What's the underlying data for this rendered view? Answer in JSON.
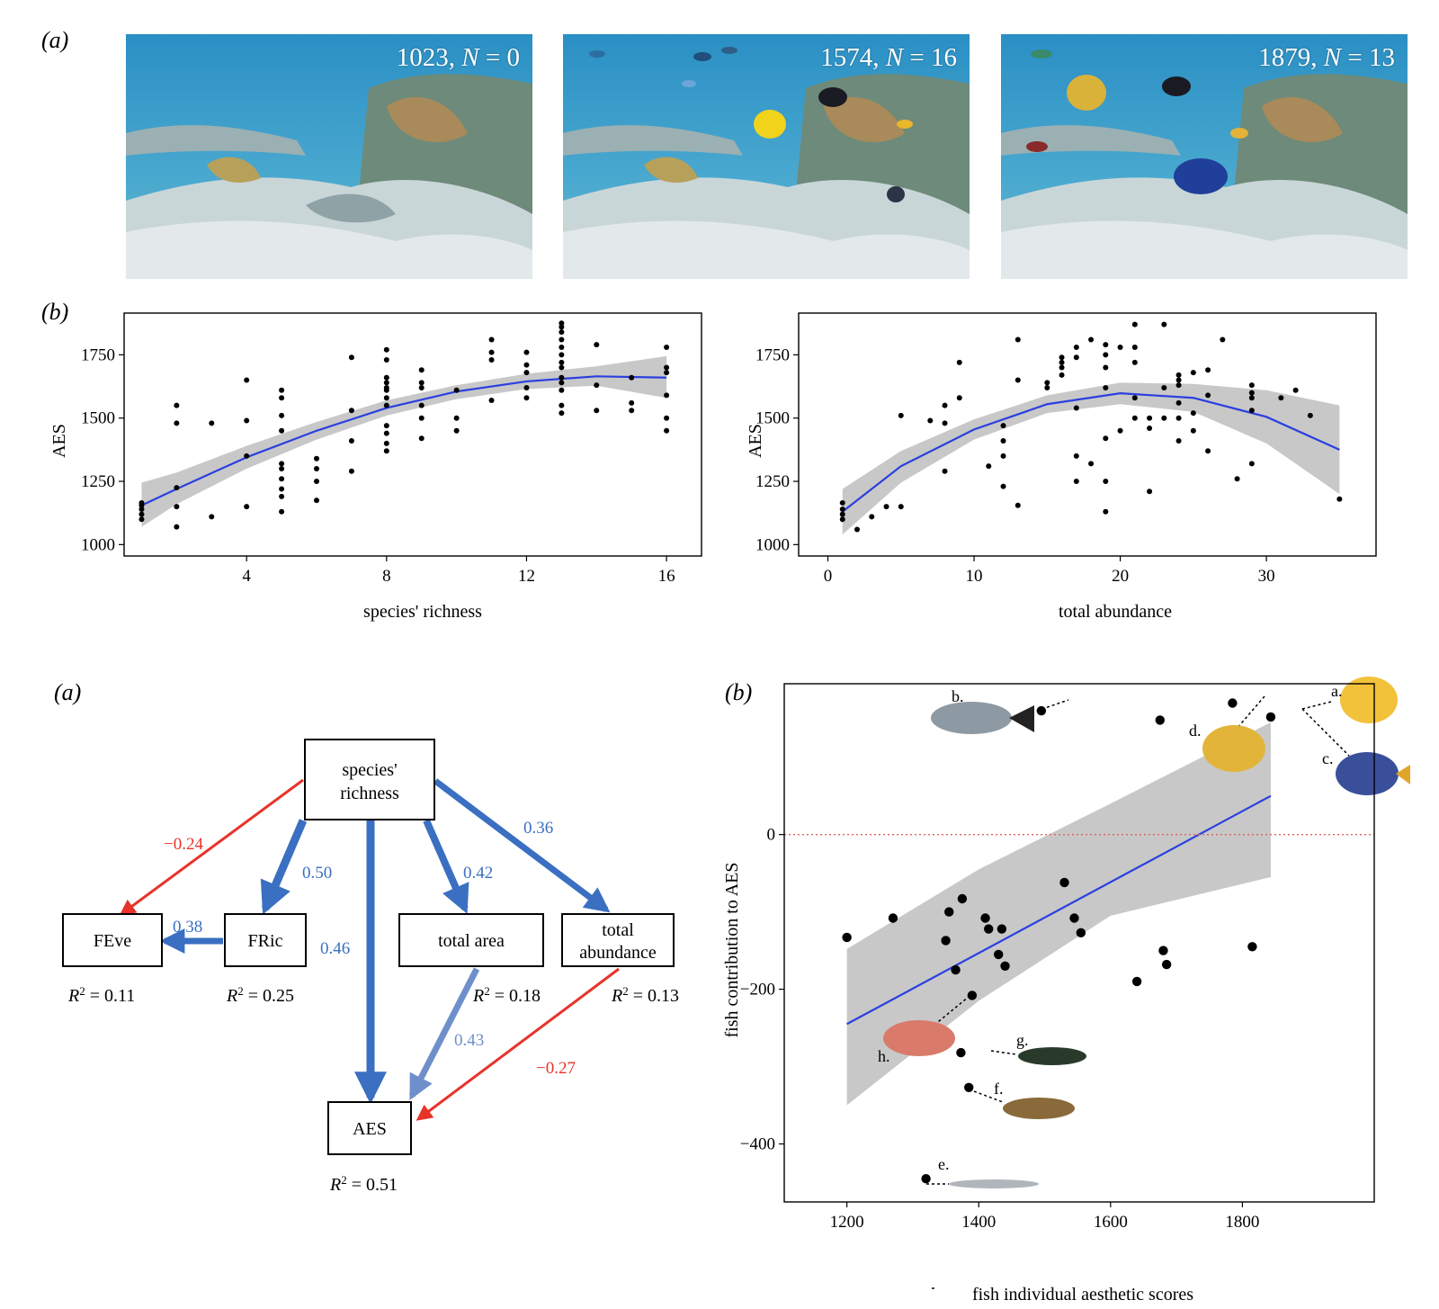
{
  "figure1": {
    "panel_a_label": "(a)",
    "panel_b_label": "(b)",
    "photos": [
      {
        "score": "1023",
        "n_label": "N",
        "n_value": "0"
      },
      {
        "score": "1574",
        "n_label": "N",
        "n_value": "16"
      },
      {
        "score": "1879",
        "n_label": "N",
        "n_value": "13"
      }
    ]
  },
  "figure2": {
    "panel_a_label": "(a)",
    "panel_b_label": "(b)",
    "sem": {
      "nodes": {
        "richness": [
          "species'",
          "richness"
        ],
        "feve": "FEve",
        "fric": "FRic",
        "area": "total area",
        "abundance": [
          "total",
          "abundance"
        ],
        "aes": "AES"
      },
      "r2": {
        "feve": "0.11",
        "fric": "0.25",
        "area": "0.18",
        "abundance": "0.13",
        "aes": "0.51"
      },
      "r2_label": "R",
      "paths": [
        {
          "from": "richness",
          "to": "feve",
          "coef": "−0.24",
          "color": "#e8332a"
        },
        {
          "from": "richness",
          "to": "fric",
          "coef": "0.50",
          "color": "#3a6fc1"
        },
        {
          "from": "richness",
          "to": "aes",
          "coef": "0.46",
          "color": "#3a6fc1"
        },
        {
          "from": "richness",
          "to": "area",
          "coef": "0.42",
          "color": "#3a6fc1"
        },
        {
          "from": "richness",
          "to": "abundance",
          "coef": "0.36",
          "color": "#3a6fc1"
        },
        {
          "from": "fric",
          "to": "feve",
          "coef": "0.38",
          "color": "#3a6fc1"
        },
        {
          "from": "area",
          "to": "aes",
          "coef": "0.43",
          "color": "#6f8fcb"
        },
        {
          "from": "abundance",
          "to": "aes",
          "coef": "−0.27",
          "color": "#e8332a"
        }
      ]
    },
    "fish_labels": [
      "a.",
      "b.",
      "c.",
      "d.",
      "e.",
      "f.",
      "g.",
      "h."
    ]
  },
  "colors": {
    "fit_line": "#2b3fe0",
    "ribbon": "#c8c8c8",
    "positive": "#3a6fc1",
    "negative": "#e8332a",
    "zero_line": "#e06060"
  },
  "chart_data": [
    {
      "type": "scatter",
      "xlabel": "species' richness",
      "ylabel": "AES",
      "xlim": [
        0.5,
        17
      ],
      "ylim": [
        955,
        1915
      ],
      "xticks": [
        4,
        8,
        12,
        16
      ],
      "yticks": [
        1000,
        1250,
        1500,
        1750
      ],
      "grid": false,
      "fit": "quadratic with grey confidence ribbon",
      "points": [
        [
          1,
          1100
        ],
        [
          1,
          1120
        ],
        [
          1,
          1140
        ],
        [
          1,
          1155
        ],
        [
          1,
          1165
        ],
        [
          2,
          1070
        ],
        [
          2,
          1150
        ],
        [
          2,
          1225
        ],
        [
          2,
          1480
        ],
        [
          2,
          1550
        ],
        [
          3,
          1110
        ],
        [
          3,
          1480
        ],
        [
          4,
          1150
        ],
        [
          4,
          1350
        ],
        [
          4,
          1490
        ],
        [
          4,
          1650
        ],
        [
          5,
          1130
        ],
        [
          5,
          1190
        ],
        [
          5,
          1220
        ],
        [
          5,
          1260
        ],
        [
          5,
          1300
        ],
        [
          5,
          1320
        ],
        [
          5,
          1450
        ],
        [
          5,
          1510
        ],
        [
          5,
          1580
        ],
        [
          5,
          1610
        ],
        [
          6,
          1175
        ],
        [
          6,
          1250
        ],
        [
          6,
          1300
        ],
        [
          6,
          1340
        ],
        [
          7,
          1290
        ],
        [
          7,
          1410
        ],
        [
          7,
          1530
        ],
        [
          7,
          1740
        ],
        [
          8,
          1370
        ],
        [
          8,
          1400
        ],
        [
          8,
          1440
        ],
        [
          8,
          1470
        ],
        [
          8,
          1550
        ],
        [
          8,
          1580
        ],
        [
          8,
          1610
        ],
        [
          8,
          1620
        ],
        [
          8,
          1640
        ],
        [
          8,
          1660
        ],
        [
          8,
          1730
        ],
        [
          8,
          1770
        ],
        [
          9,
          1420
        ],
        [
          9,
          1500
        ],
        [
          9,
          1550
        ],
        [
          9,
          1620
        ],
        [
          9,
          1640
        ],
        [
          9,
          1690
        ],
        [
          10,
          1450
        ],
        [
          10,
          1500
        ],
        [
          10,
          1610
        ],
        [
          11,
          1570
        ],
        [
          11,
          1730
        ],
        [
          11,
          1760
        ],
        [
          11,
          1810
        ],
        [
          12,
          1580
        ],
        [
          12,
          1620
        ],
        [
          12,
          1680
        ],
        [
          12,
          1710
        ],
        [
          12,
          1760
        ],
        [
          13,
          1520
        ],
        [
          13,
          1550
        ],
        [
          13,
          1610
        ],
        [
          13,
          1640
        ],
        [
          13,
          1660
        ],
        [
          13,
          1700
        ],
        [
          13,
          1720
        ],
        [
          13,
          1750
        ],
        [
          13,
          1780
        ],
        [
          13,
          1810
        ],
        [
          13,
          1840
        ],
        [
          13,
          1860
        ],
        [
          13,
          1875
        ],
        [
          14,
          1530
        ],
        [
          14,
          1630
        ],
        [
          14,
          1790
        ],
        [
          15,
          1530
        ],
        [
          15,
          1560
        ],
        [
          15,
          1660
        ],
        [
          16,
          1450
        ],
        [
          16,
          1500
        ],
        [
          16,
          1590
        ],
        [
          16,
          1680
        ],
        [
          16,
          1700
        ],
        [
          16,
          1780
        ]
      ],
      "fit_line": [
        [
          1,
          1155
        ],
        [
          2,
          1220
        ],
        [
          4,
          1345
        ],
        [
          6,
          1450
        ],
        [
          8,
          1540
        ],
        [
          10,
          1605
        ],
        [
          12,
          1645
        ],
        [
          14,
          1665
        ],
        [
          16,
          1660
        ]
      ],
      "ribbon_lower": [
        [
          1,
          1070
        ],
        [
          2,
          1160
        ],
        [
          4,
          1300
        ],
        [
          6,
          1415
        ],
        [
          8,
          1510
        ],
        [
          10,
          1575
        ],
        [
          12,
          1615
        ],
        [
          14,
          1628
        ],
        [
          16,
          1580
        ]
      ],
      "ribbon_upper": [
        [
          1,
          1245
        ],
        [
          2,
          1285
        ],
        [
          4,
          1390
        ],
        [
          6,
          1485
        ],
        [
          8,
          1570
        ],
        [
          10,
          1630
        ],
        [
          12,
          1675
        ],
        [
          14,
          1705
        ],
        [
          16,
          1745
        ]
      ]
    },
    {
      "type": "scatter",
      "xlabel": "total abundance",
      "ylabel": "AES",
      "xlim": [
        -2,
        37.5
      ],
      "ylim": [
        955,
        1915
      ],
      "xticks": [
        0,
        10,
        20,
        30
      ],
      "yticks": [
        1000,
        1250,
        1500,
        1750
      ],
      "grid": false,
      "fit": "quadratic with grey confidence ribbon",
      "points": [
        [
          1,
          1100
        ],
        [
          1,
          1120
        ],
        [
          1,
          1140
        ],
        [
          1,
          1165
        ],
        [
          2,
          1060
        ],
        [
          3,
          1110
        ],
        [
          4,
          1150
        ],
        [
          5,
          1150
        ],
        [
          5,
          1510
        ],
        [
          7,
          1490
        ],
        [
          8,
          1290
        ],
        [
          8,
          1480
        ],
        [
          8,
          1550
        ],
        [
          9,
          1580
        ],
        [
          9,
          1720
        ],
        [
          11,
          1310
        ],
        [
          12,
          1230
        ],
        [
          12,
          1350
        ],
        [
          12,
          1410
        ],
        [
          12,
          1470
        ],
        [
          13,
          1155
        ],
        [
          13,
          1650
        ],
        [
          13,
          1810
        ],
        [
          15,
          1620
        ],
        [
          15,
          1640
        ],
        [
          16,
          1670
        ],
        [
          16,
          1700
        ],
        [
          16,
          1720
        ],
        [
          16,
          1740
        ],
        [
          17,
          1250
        ],
        [
          17,
          1350
        ],
        [
          17,
          1540
        ],
        [
          17,
          1740
        ],
        [
          17,
          1780
        ],
        [
          18,
          1320
        ],
        [
          18,
          1810
        ],
        [
          19,
          1130
        ],
        [
          19,
          1250
        ],
        [
          19,
          1420
        ],
        [
          19,
          1620
        ],
        [
          19,
          1700
        ],
        [
          19,
          1750
        ],
        [
          19,
          1790
        ],
        [
          20,
          1450
        ],
        [
          20,
          1780
        ],
        [
          21,
          1500
        ],
        [
          21,
          1580
        ],
        [
          21,
          1720
        ],
        [
          21,
          1780
        ],
        [
          21,
          1870
        ],
        [
          22,
          1210
        ],
        [
          22,
          1460
        ],
        [
          22,
          1500
        ],
        [
          23,
          1500
        ],
        [
          23,
          1620
        ],
        [
          23,
          1870
        ],
        [
          24,
          1410
        ],
        [
          24,
          1500
        ],
        [
          24,
          1560
        ],
        [
          24,
          1630
        ],
        [
          24,
          1650
        ],
        [
          24,
          1670
        ],
        [
          25,
          1450
        ],
        [
          25,
          1520
        ],
        [
          25,
          1680
        ],
        [
          26,
          1370
        ],
        [
          26,
          1590
        ],
        [
          26,
          1690
        ],
        [
          27,
          1810
        ],
        [
          28,
          1260
        ],
        [
          29,
          1320
        ],
        [
          29,
          1530
        ],
        [
          29,
          1580
        ],
        [
          29,
          1600
        ],
        [
          29,
          1630
        ],
        [
          31,
          1580
        ],
        [
          32,
          1610
        ],
        [
          33,
          1510
        ],
        [
          35,
          1180
        ]
      ],
      "fit_line": [
        [
          1,
          1130
        ],
        [
          5,
          1310
        ],
        [
          10,
          1455
        ],
        [
          15,
          1555
        ],
        [
          20,
          1598
        ],
        [
          25,
          1580
        ],
        [
          30,
          1505
        ],
        [
          35,
          1375
        ]
      ],
      "ribbon_lower": [
        [
          1,
          1040
        ],
        [
          5,
          1245
        ],
        [
          10,
          1415
        ],
        [
          15,
          1520
        ],
        [
          20,
          1555
        ],
        [
          25,
          1525
        ],
        [
          30,
          1400
        ],
        [
          35,
          1200
        ]
      ],
      "ribbon_upper": [
        [
          1,
          1220
        ],
        [
          5,
          1370
        ],
        [
          10,
          1495
        ],
        [
          15,
          1590
        ],
        [
          20,
          1640
        ],
        [
          25,
          1635
        ],
        [
          30,
          1610
        ],
        [
          35,
          1550
        ]
      ]
    },
    {
      "type": "scatter",
      "xlabel": "fish individual aesthetic scores",
      "ylabel": "fish contribution to AES",
      "xlim": [
        1105,
        2000
      ],
      "ylim": [
        -475,
        195
      ],
      "xticks": [
        1200,
        1400,
        1600,
        1800
      ],
      "yticks": [
        0,
        -200,
        -400
      ],
      "grid": false,
      "reference_line_y": 0,
      "fit": "linear with grey confidence ribbon",
      "points": [
        [
          1200,
          -133
        ],
        [
          1270,
          -108
        ],
        [
          1350,
          -137
        ],
        [
          1355,
          -100
        ],
        [
          1365,
          -175
        ],
        [
          1375,
          -83
        ],
        [
          1390,
          -208
        ],
        [
          1410,
          -108
        ],
        [
          1415,
          -122
        ],
        [
          1430,
          -155
        ],
        [
          1435,
          -122
        ],
        [
          1440,
          -170
        ],
        [
          1530,
          -62
        ],
        [
          1545,
          -108
        ],
        [
          1555,
          -127
        ],
        [
          1640,
          -190
        ],
        [
          1680,
          -150
        ],
        [
          1685,
          -168
        ],
        [
          1815,
          -145
        ],
        [
          1495,
          160
        ],
        [
          1675,
          148
        ],
        [
          1785,
          170
        ],
        [
          1843,
          152
        ],
        [
          1320,
          -445
        ],
        [
          1373,
          -282
        ],
        [
          1385,
          -327
        ]
      ],
      "fit_line": [
        [
          1200,
          -245
        ],
        [
          1843,
          50
        ]
      ],
      "ribbon_lower": [
        [
          1200,
          -350
        ],
        [
          1400,
          -215
        ],
        [
          1600,
          -105
        ],
        [
          1843,
          -55
        ]
      ],
      "ribbon_upper": [
        [
          1200,
          -148
        ],
        [
          1400,
          -45
        ],
        [
          1600,
          40
        ],
        [
          1843,
          145
        ]
      ]
    }
  ]
}
